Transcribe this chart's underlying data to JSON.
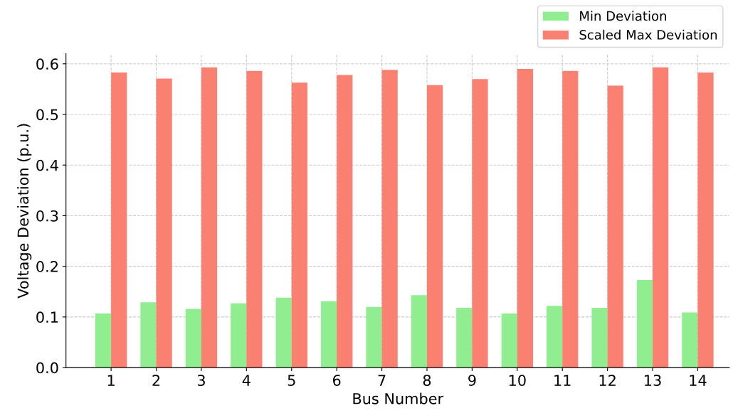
{
  "chart_data": {
    "type": "bar",
    "xlabel": "Bus Number",
    "ylabel": "Voltage Deviation (p.u.)",
    "categories": [
      "1",
      "2",
      "3",
      "4",
      "5",
      "6",
      "7",
      "8",
      "9",
      "10",
      "11",
      "12",
      "13",
      "14"
    ],
    "series": [
      {
        "name": "Min Deviation",
        "color": "#90ee90",
        "values": [
          0.107,
          0.129,
          0.116,
          0.127,
          0.138,
          0.131,
          0.12,
          0.143,
          0.118,
          0.107,
          0.122,
          0.118,
          0.173,
          0.109
        ]
      },
      {
        "name": "Scaled Max Deviation",
        "color": "#fa8072",
        "values": [
          0.583,
          0.571,
          0.593,
          0.586,
          0.563,
          0.578,
          0.588,
          0.558,
          0.57,
          0.59,
          0.586,
          0.557,
          0.593,
          0.583
        ]
      }
    ],
    "ylim": [
      0,
      0.62
    ],
    "yticks": [
      {
        "value": 0,
        "label": "0.0"
      },
      0.1,
      0.2,
      0.3,
      0.4,
      0.5,
      0.6
    ],
    "grid": true,
    "legend": "top right"
  }
}
